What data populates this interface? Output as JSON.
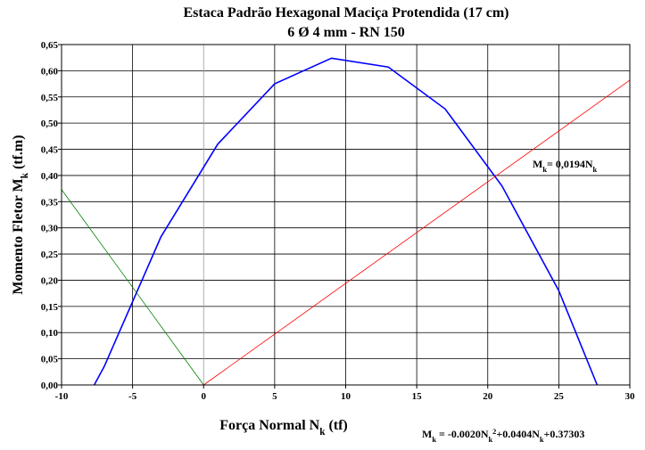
{
  "chart_data": {
    "type": "line",
    "title": "Estaca Padrão Hexagonal Maciça Protendida (17 cm)",
    "subtitle": "6 Ø 4 mm - RN 150",
    "x_label": [
      {
        "text": "Força Normal N"
      },
      {
        "text": "k",
        "sub": true
      },
      {
        "text": " (tf)"
      }
    ],
    "y_label": [
      {
        "text": "Momento Fletor M"
      },
      {
        "text": "k",
        "sub": true
      },
      {
        "text": " (tf.m)"
      }
    ],
    "xlim": [
      -10,
      30
    ],
    "xticks": [
      -10,
      -5,
      0,
      5,
      10,
      15,
      20,
      25,
      30
    ],
    "ylim": [
      0,
      0.65
    ],
    "yticks": [
      {
        "value": 0,
        "label": "0,00"
      },
      {
        "value": 0.05,
        "label": "0,05"
      },
      {
        "value": 0.1,
        "label": "0,10"
      },
      {
        "value": 0.15,
        "label": "0,15"
      },
      {
        "value": 0.2,
        "label": "0,20"
      },
      {
        "value": 0.25,
        "label": "0,25"
      },
      {
        "value": 0.3,
        "label": "0,30"
      },
      {
        "value": 0.35,
        "label": "0,35"
      },
      {
        "value": 0.4,
        "label": "0,40"
      },
      {
        "value": 0.45,
        "label": "0,45"
      },
      {
        "value": 0.5,
        "label": "0,50"
      },
      {
        "value": 0.55,
        "label": "0,55"
      },
      {
        "value": 0.6,
        "label": "0,60"
      },
      {
        "value": 0.65,
        "label": "0,65"
      }
    ],
    "grid": true,
    "grid_color": "#000000",
    "series": [
      {
        "color": "#0000ff",
        "x": [
          -7.7,
          -7,
          -3,
          1,
          5,
          9,
          13,
          17,
          21,
          25,
          27.7
        ],
        "values": [
          0,
          0.035,
          0.283,
          0.46,
          0.575,
          0.624,
          0.607,
          0.527,
          0.38,
          0.18,
          0
        ]
      },
      {
        "color": "#ff0000",
        "x": [
          0,
          30
        ],
        "values": [
          0,
          0.582
        ]
      },
      {
        "color": "#008000",
        "x": [
          -10,
          0
        ],
        "values": [
          0.373,
          0
        ]
      }
    ],
    "annotations": [
      {
        "parts": [
          {
            "text": "M"
          },
          {
            "text": "k",
            "sub": true
          },
          {
            "text": "= 0,0194N"
          },
          {
            "text": "k",
            "sub": true
          }
        ]
      },
      {
        "parts": [
          {
            "text": "M"
          },
          {
            "text": "k",
            "sub": true
          },
          {
            "text": " = -0.0020N"
          },
          {
            "text": "k",
            "sub": true
          },
          {
            "text": "2",
            "sup": true
          },
          {
            "text": "+0.0404N"
          },
          {
            "text": "k",
            "sub": true
          },
          {
            "text": "+0.37303"
          }
        ]
      }
    ]
  }
}
